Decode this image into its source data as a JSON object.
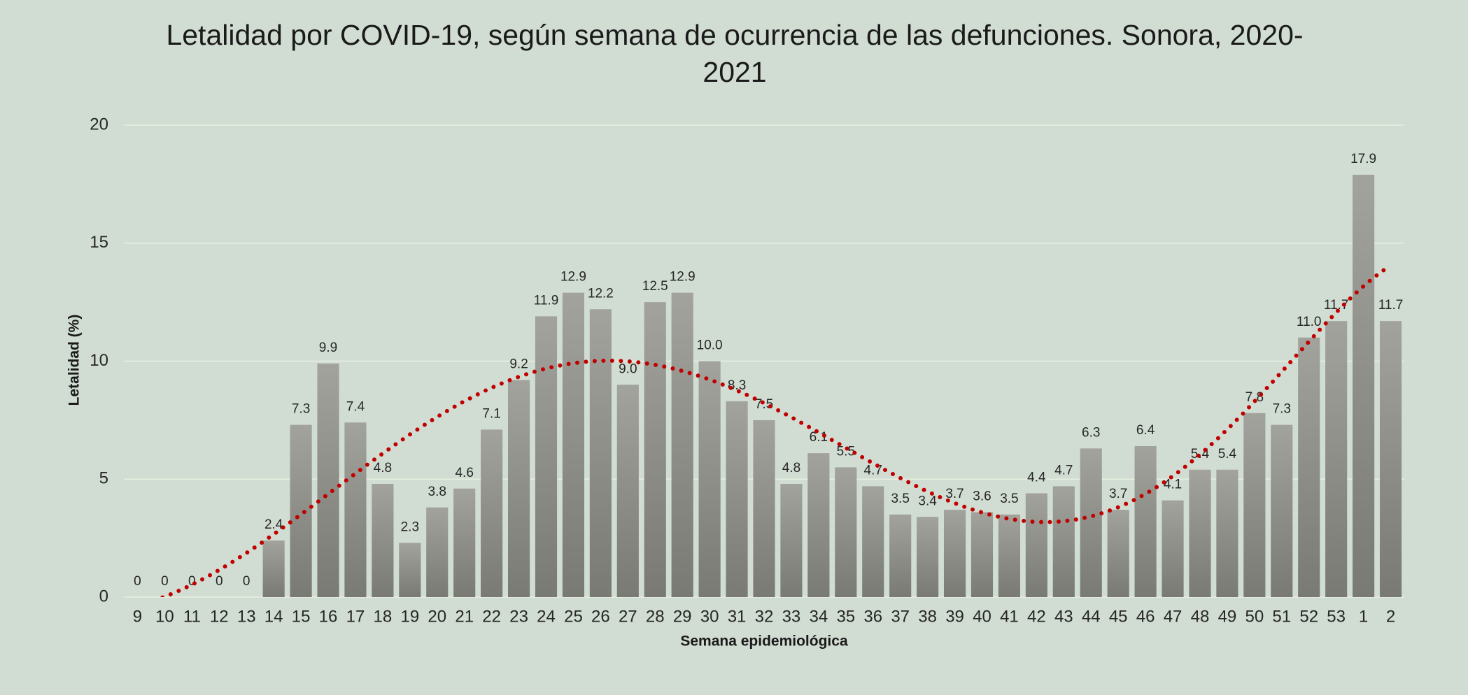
{
  "chart_data": {
    "type": "bar",
    "title": "Letalidad por COVID-19, según semana de ocurrencia de las defunciones. Sonora, 2020-2021",
    "x_label": "Semana epidemiológica",
    "y_label": "Letalidad (%)",
    "categories": [
      "9",
      "10",
      "11",
      "12",
      "13",
      "14",
      "15",
      "16",
      "17",
      "18",
      "19",
      "20",
      "21",
      "22",
      "23",
      "24",
      "25",
      "26",
      "27",
      "28",
      "29",
      "30",
      "31",
      "32",
      "33",
      "34",
      "35",
      "36",
      "37",
      "38",
      "39",
      "40",
      "41",
      "42",
      "43",
      "44",
      "45",
      "46",
      "47",
      "48",
      "49",
      "50",
      "51",
      "52",
      "53",
      "1",
      "2"
    ],
    "values": [
      0,
      0,
      0,
      0,
      0,
      2.4,
      7.3,
      9.9,
      7.4,
      4.8,
      2.3,
      3.8,
      4.6,
      7.1,
      9.2,
      11.9,
      12.9,
      12.2,
      9.0,
      12.5,
      12.9,
      10.0,
      8.3,
      7.5,
      4.8,
      6.1,
      5.5,
      4.7,
      3.5,
      3.4,
      3.7,
      3.6,
      3.5,
      4.4,
      4.7,
      6.3,
      3.7,
      6.4,
      4.1,
      5.4,
      5.4,
      7.8,
      7.3,
      11.0,
      11.7,
      17.9,
      11.7
    ],
    "value_labels": [
      "0",
      "0",
      "0",
      "0",
      "0",
      "2.4",
      "7.3",
      "9.9",
      "7.4",
      "4.8",
      "2.3",
      "3.8",
      "4.6",
      "7.1",
      "9.2",
      "11.9",
      "12.9",
      "12.2",
      "9.0",
      "12.5",
      "12.9",
      "10.0",
      "8.3",
      "7.5",
      "4.8",
      "6.1",
      "5.5",
      "4.7",
      "3.5",
      "3.4",
      "3.7",
      "3.6",
      "3.5",
      "4.4",
      "4.7",
      "6.3",
      "3.7",
      "6.4",
      "4.1",
      "5.4",
      "5.4",
      "7.8",
      "7.3",
      "11.0",
      "11.7",
      "17.9",
      "11.7"
    ],
    "color": "#8e8e88",
    "ylim": [
      0,
      20
    ],
    "yticks": [
      0,
      5,
      10,
      15,
      20
    ],
    "grid": true,
    "trendline": {
      "type": "polynomial",
      "order": 6,
      "color": "#c00000"
    }
  }
}
